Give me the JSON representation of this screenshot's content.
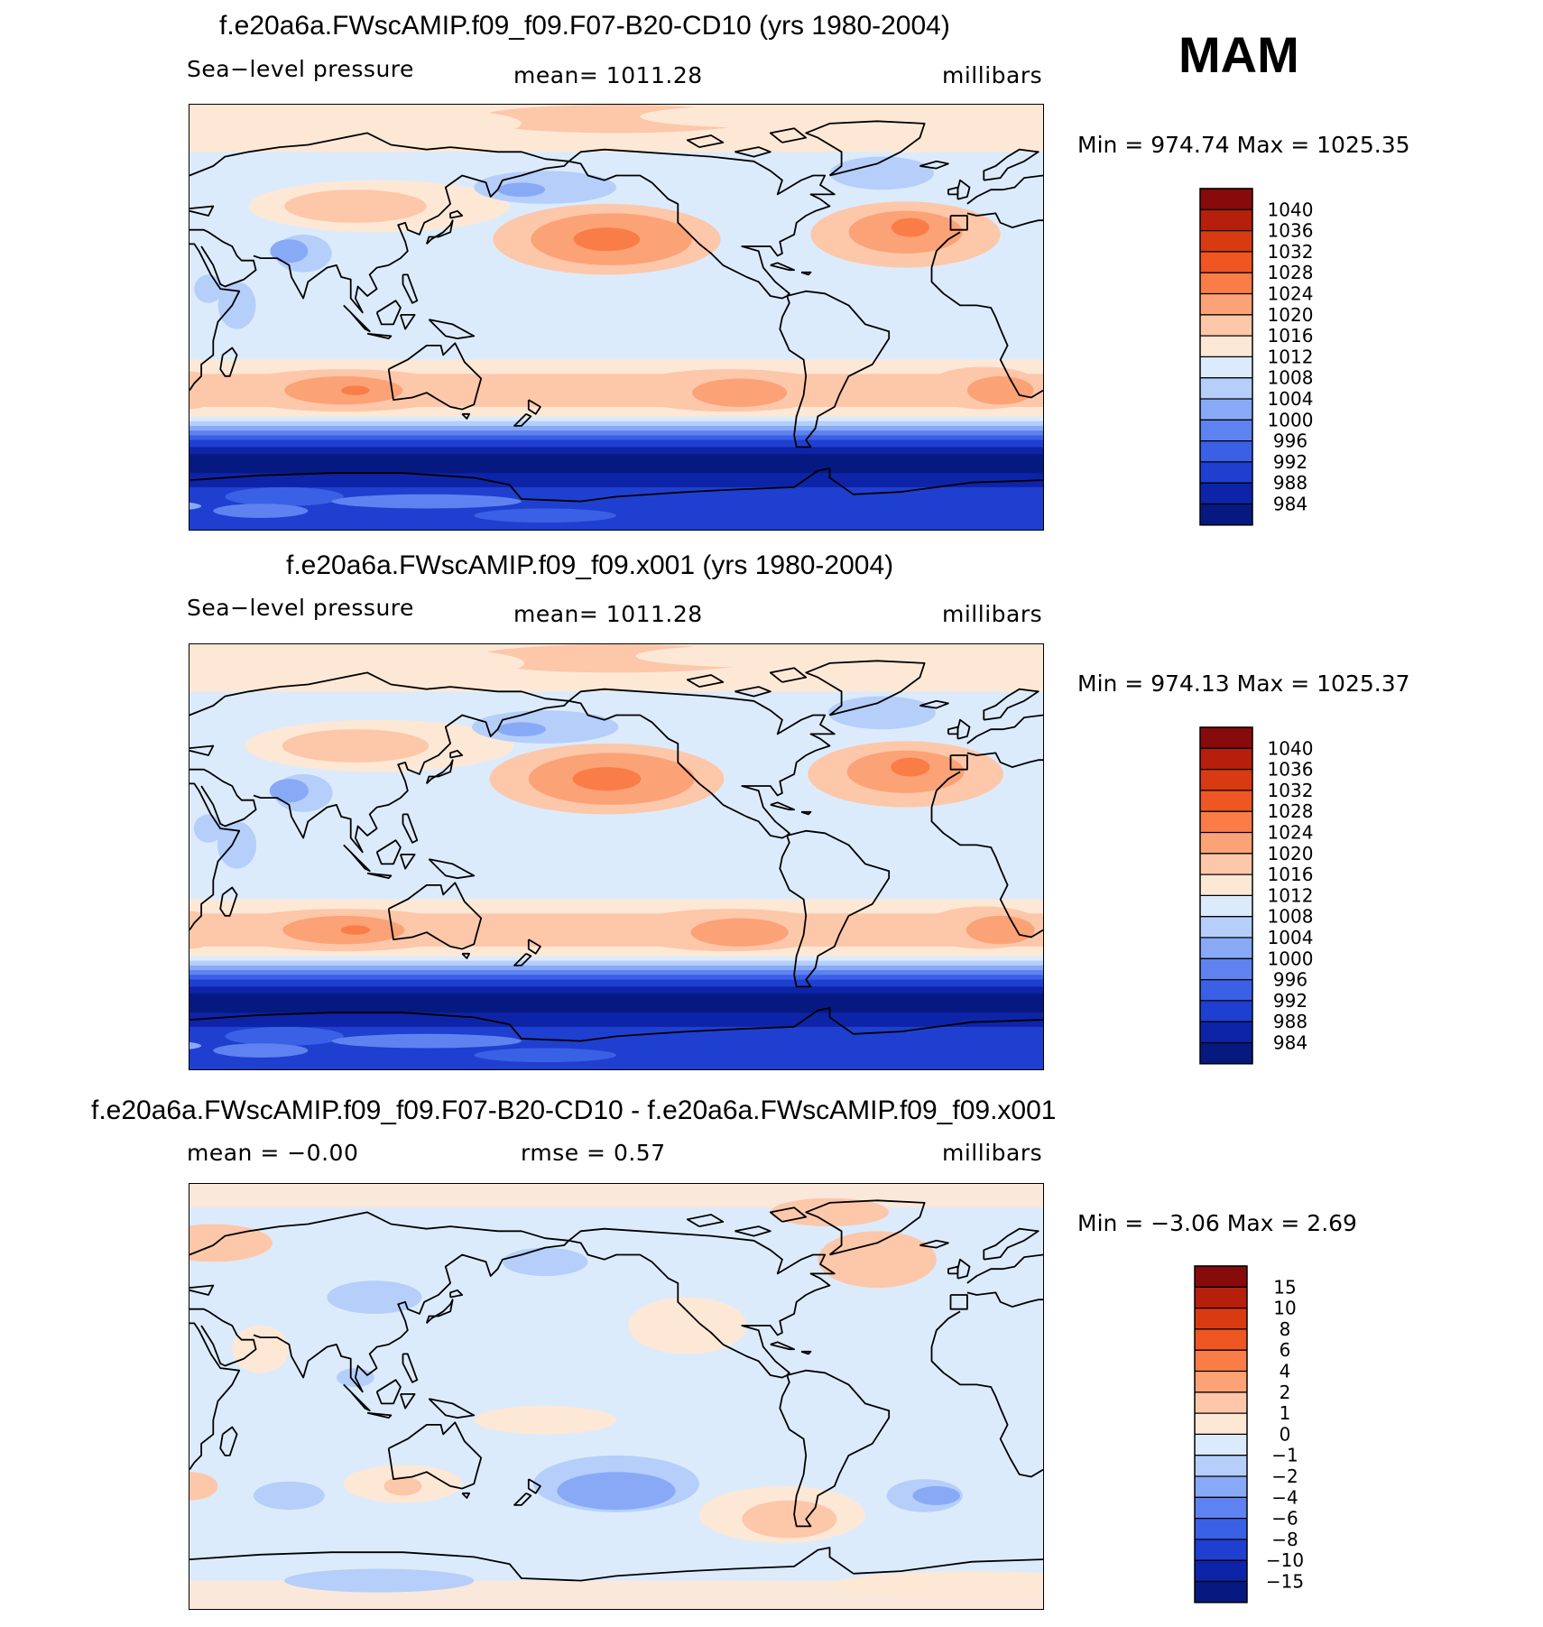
{
  "season": "MAM",
  "units": "millibars",
  "panels": [
    {
      "title": "f.e20a6a.FWscAMIP.f09_f09.F07-B20-CD10 (yrs 1980-2004)",
      "variable": "Sea−level pressure",
      "stat": "mean=  1011.28",
      "units": "millibars",
      "minmax": "Min  =  974.74  Max  =  1025.35",
      "kind": "abs",
      "stronger": 1.0
    },
    {
      "title": "f.e20a6a.FWscAMIP.f09_f09.x001 (yrs 1980-2004)",
      "variable": "Sea−level pressure",
      "stat": "mean=  1011.28",
      "units": "millibars",
      "minmax": "Min  =  974.13  Max  =  1025.37",
      "kind": "abs",
      "stronger": 1.03
    },
    {
      "title": "f.e20a6a.FWscAMIP.f09_f09.F07-B20-CD10 - f.e20a6a.FWscAMIP.f09_f09.x001",
      "stat_left": "mean  =    −0.00",
      "stat_mid": "rmse  =      0.57",
      "units": "millibars",
      "minmax": "Min  =     −3.06  Max  =      2.69",
      "kind": "diff"
    }
  ],
  "colorbar_abs": {
    "labels": [
      "1040",
      "1036",
      "1032",
      "1028",
      "1024",
      "1020",
      "1016",
      "1012",
      "1008",
      "1004",
      "1000",
      "996",
      "992",
      "988",
      "984"
    ],
    "colors": [
      "#870b0b",
      "#b51f0c",
      "#d83a12",
      "#ee5722",
      "#fa7d48",
      "#fca277",
      "#fdc7aa",
      "#fde8d6",
      "#dcebfb",
      "#b5cffa",
      "#88aaf6",
      "#5e83f0",
      "#3a60e5",
      "#1f3fd0",
      "#0d24a8",
      "#061980"
    ]
  },
  "colorbar_diff": {
    "labels": [
      "15",
      "10",
      "8",
      "6",
      "4",
      "2",
      "1",
      "0",
      "−1",
      "−2",
      "−4",
      "−6",
      "−8",
      "−10",
      "−15"
    ],
    "colors": [
      "#870b0b",
      "#b51f0c",
      "#d83a12",
      "#ee5722",
      "#fa7d48",
      "#fca277",
      "#fdc7aa",
      "#fde8d6",
      "#dcebfb",
      "#b5cffa",
      "#88aaf6",
      "#5e83f0",
      "#3a60e5",
      "#1f3fd0",
      "#0d24a8",
      "#061980"
    ]
  }
}
